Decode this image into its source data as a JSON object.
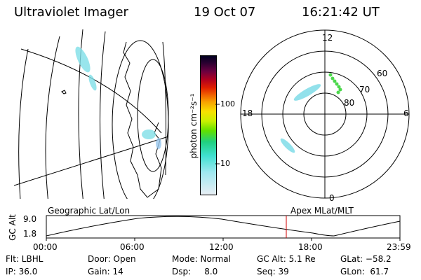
{
  "header": {
    "title": "Ultraviolet Imager",
    "date": "19 Oct 07",
    "time": "16:21:42 UT"
  },
  "colorbar": {
    "label": "photon cm⁻²s⁻¹",
    "ticks": [
      "100",
      "10"
    ]
  },
  "polar": {
    "mlt_labels": {
      "top": "12",
      "left": "18",
      "right": "6",
      "bottom": "0"
    },
    "lat_labels": [
      "60",
      "70",
      "80"
    ]
  },
  "timeline": {
    "y_axis_title": "GC Alt",
    "y_ticks": [
      "9.0",
      "1.8"
    ],
    "left_label": "Geographic Lat/Lon",
    "right_label": "Apex MLat/MLT",
    "x_ticks": [
      "00:00",
      "06:00",
      "12:00",
      "18:00",
      "23:59"
    ],
    "marker_color": "#d00000"
  },
  "info": {
    "row1": {
      "flt": "Flt: LBHL",
      "door": "Door: Open",
      "mode": "Mode: Normal",
      "gcalt": "GC Alt: 5.1 Re",
      "glat": "GLat: −58.2"
    },
    "row2": {
      "ip": "IP: 36.0",
      "gain": "Gain: 14",
      "dsp": "Dsp:     8.0",
      "seq": "Seq: 39",
      "glon": "GLon:  61.7"
    }
  }
}
